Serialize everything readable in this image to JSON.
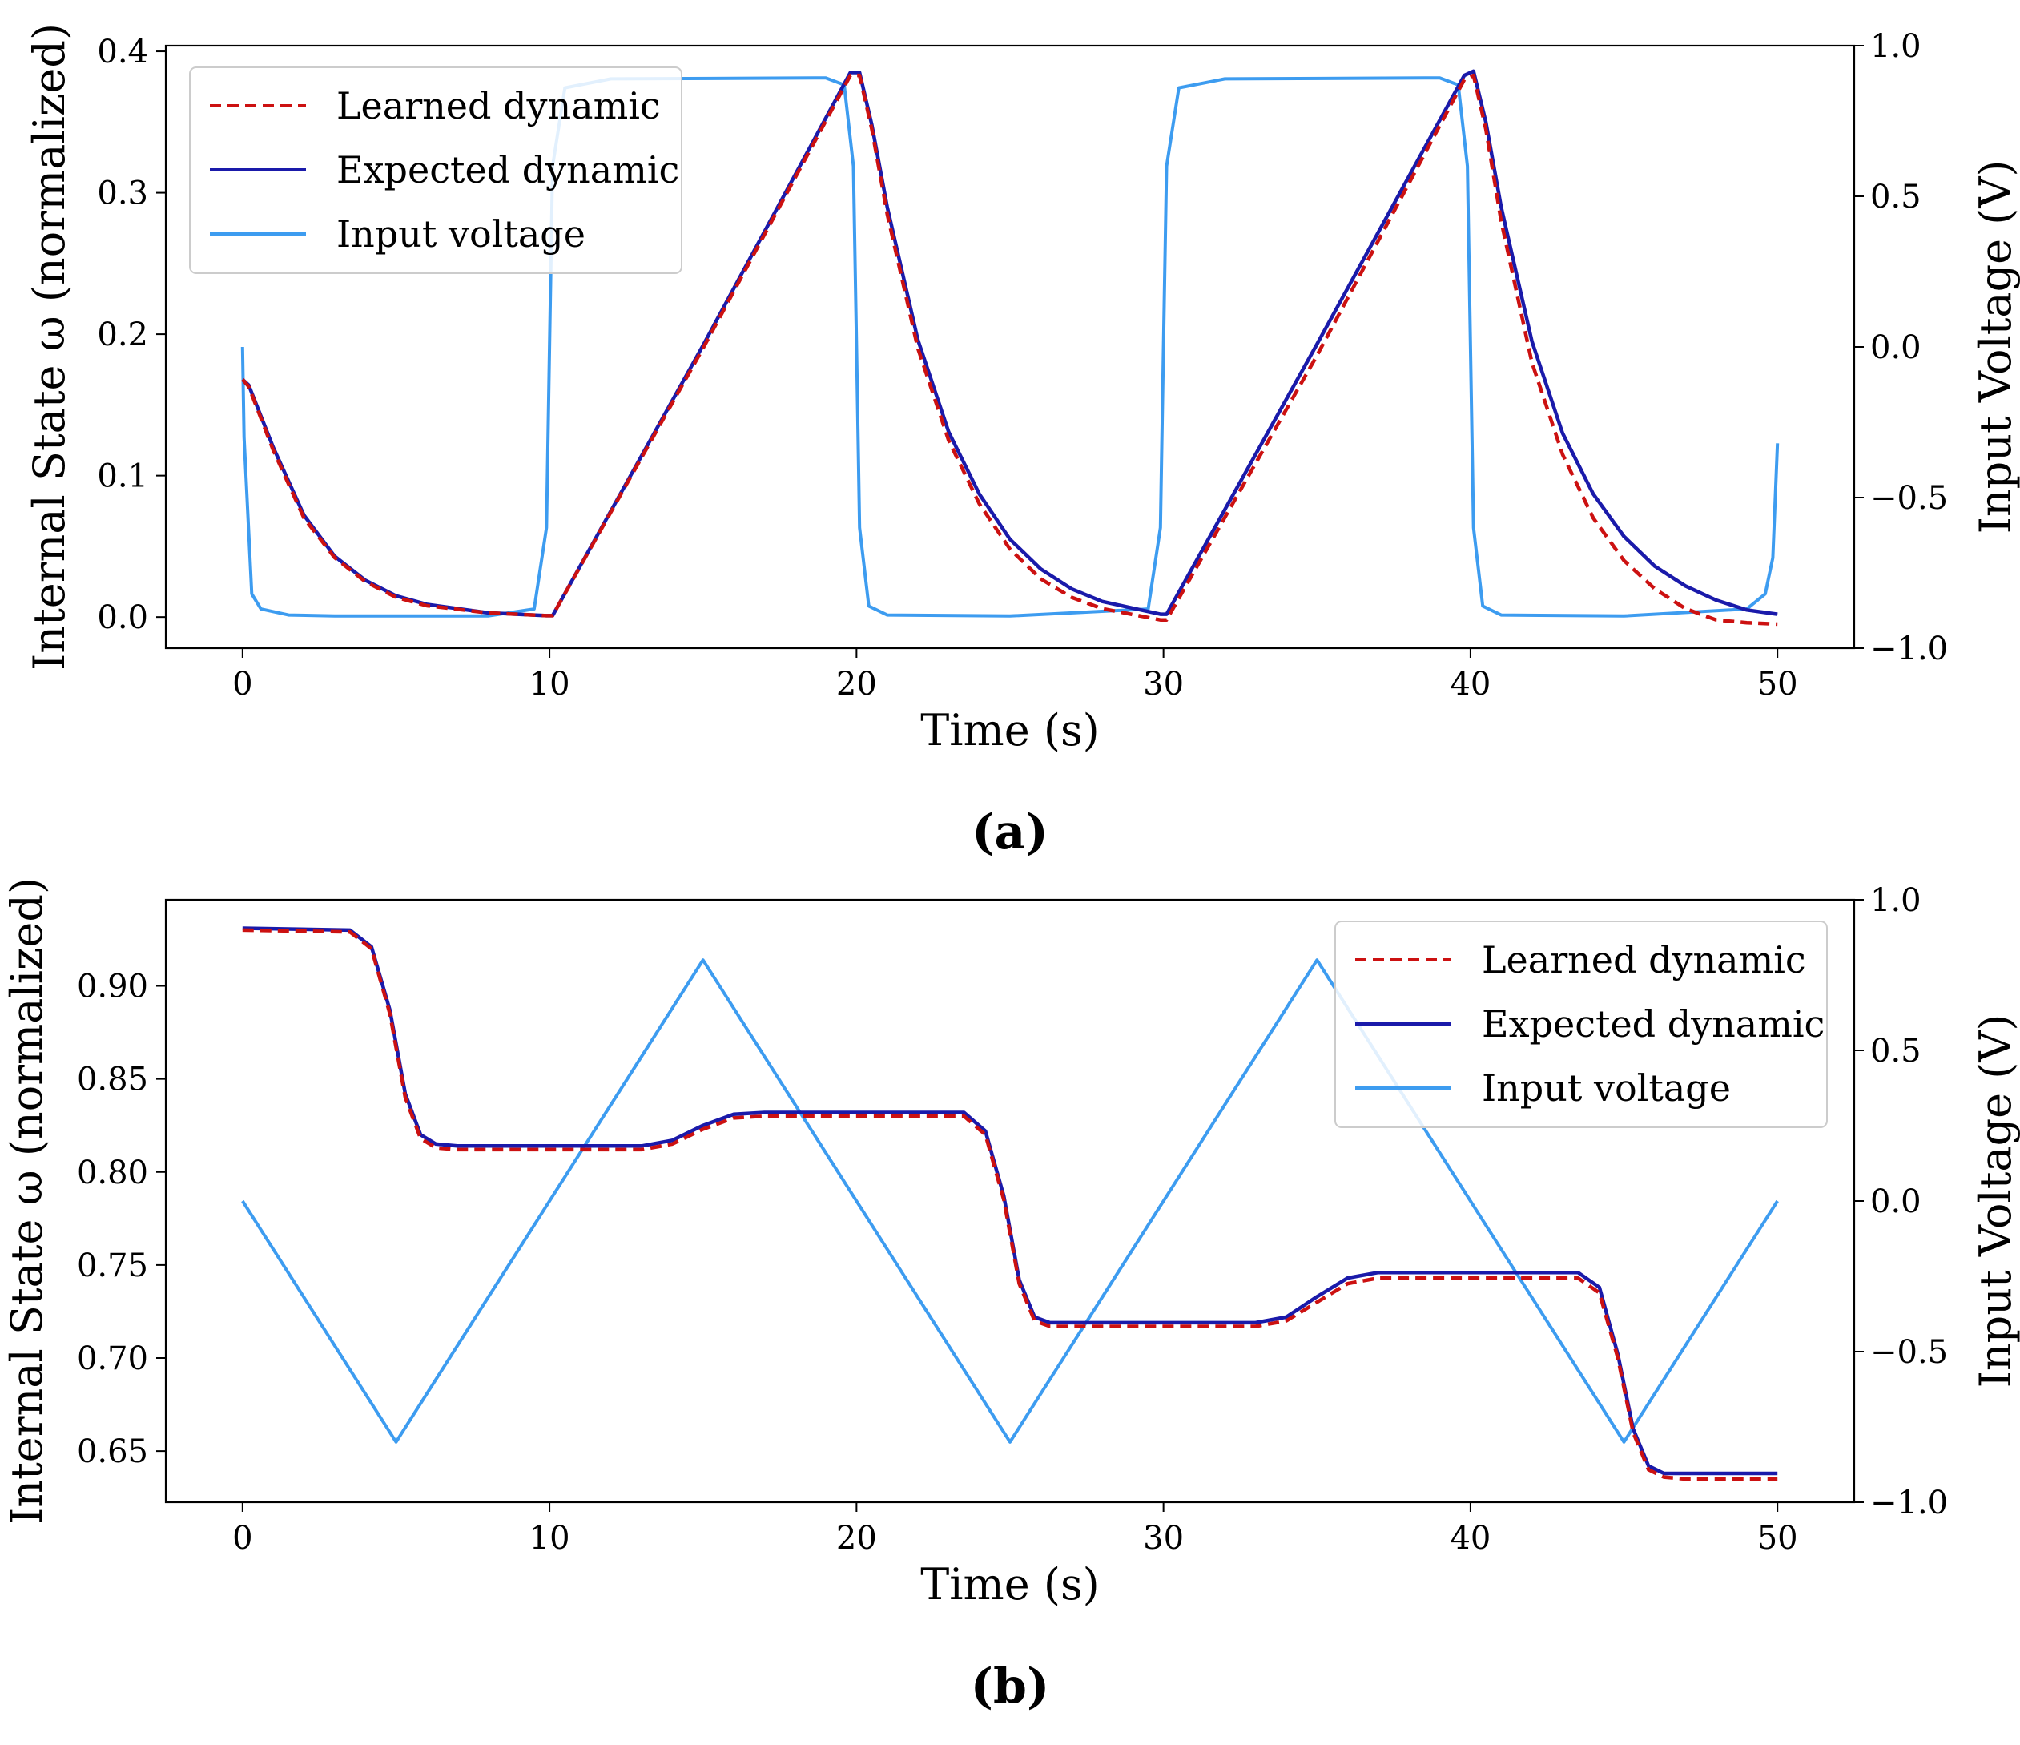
{
  "figure": {
    "captions": [
      "(a)",
      "(b)"
    ]
  },
  "chart_data": [
    {
      "id": "a",
      "type": "line",
      "caption": "(a)",
      "xlabel": "Time (s)",
      "ylabel": "Internal State ω (normalized)",
      "y2label": "Input Voltage (V)",
      "xlim": [
        -2.5,
        52.5
      ],
      "ylim": [
        -0.022,
        0.404
      ],
      "y2lim": [
        -1.0,
        1.0
      ],
      "xticks": [
        0,
        10,
        20,
        30,
        40,
        50
      ],
      "yticks": [
        0.0,
        0.1,
        0.2,
        0.3,
        0.4
      ],
      "ytick_labels": [
        "0.0",
        "0.1",
        "0.2",
        "0.3",
        "0.4"
      ],
      "y2ticks": [
        -1.0,
        -0.5,
        0.0,
        0.5,
        1.0
      ],
      "y2tick_labels": [
        "−1.0",
        "−0.5",
        "0.0",
        "0.5",
        "1.0"
      ],
      "legend_position": "top-left",
      "colors": {
        "learned": "#cc1111",
        "expected": "#1a1aaa",
        "voltage": "#3d9cf0"
      },
      "series": [
        {
          "name": "Learned dynamic",
          "axis": "left",
          "style": "dashed",
          "x": [
            0,
            0.2,
            1,
            2,
            3,
            4,
            5,
            6,
            8,
            9.9,
            10.1,
            15,
            19.8,
            20.1,
            20.5,
            21,
            22,
            23,
            24,
            25,
            26,
            27,
            28,
            29.9,
            30.1,
            35,
            39.8,
            40.1,
            40.5,
            41,
            42,
            43,
            44,
            45,
            46,
            47,
            48,
            49,
            50
          ],
          "values": [
            0.168,
            0.163,
            0.118,
            0.07,
            0.042,
            0.025,
            0.014,
            0.008,
            0.003,
            0.001,
            0.001,
            0.19,
            0.383,
            0.383,
            0.345,
            0.285,
            0.19,
            0.125,
            0.08,
            0.048,
            0.027,
            0.014,
            0.006,
            -0.002,
            -0.002,
            0.185,
            0.38,
            0.383,
            0.345,
            0.28,
            0.18,
            0.115,
            0.07,
            0.04,
            0.02,
            0.006,
            -0.002,
            -0.004,
            -0.005
          ]
        },
        {
          "name": "Expected dynamic",
          "axis": "left",
          "style": "solid",
          "x": [
            0,
            0.2,
            1,
            2,
            3,
            4,
            5,
            6,
            8,
            9.9,
            10.1,
            15,
            19.8,
            20.1,
            20.5,
            21,
            22,
            23,
            24,
            25,
            26,
            27,
            28,
            29.9,
            30.1,
            35,
            39.8,
            40.1,
            40.5,
            41,
            42,
            43,
            44,
            45,
            46,
            47,
            48,
            49,
            50
          ],
          "values": [
            0.168,
            0.164,
            0.12,
            0.072,
            0.043,
            0.026,
            0.015,
            0.009,
            0.003,
            0.001,
            0.001,
            0.192,
            0.385,
            0.385,
            0.348,
            0.29,
            0.196,
            0.131,
            0.087,
            0.055,
            0.034,
            0.02,
            0.011,
            0.002,
            0.002,
            0.193,
            0.383,
            0.386,
            0.35,
            0.29,
            0.195,
            0.13,
            0.087,
            0.057,
            0.036,
            0.022,
            0.012,
            0.005,
            0.002
          ]
        },
        {
          "name": "Input voltage",
          "axis": "right",
          "style": "solid",
          "x": [
            0,
            0.05,
            0.3,
            0.6,
            1.5,
            3,
            8,
            9.5,
            9.9,
            10,
            10.1,
            10.5,
            12,
            19,
            19.6,
            19.9,
            20,
            20.1,
            20.4,
            21,
            25,
            29.5,
            29.9,
            30,
            30.1,
            30.5,
            32,
            39,
            39.6,
            39.9,
            40,
            40.1,
            40.4,
            41,
            45,
            49,
            49.6,
            49.85,
            50
          ],
          "values": [
            0.0,
            -0.3,
            -0.82,
            -0.87,
            -0.89,
            -0.893,
            -0.893,
            -0.87,
            -0.6,
            0.0,
            0.6,
            0.86,
            0.89,
            0.893,
            0.87,
            0.6,
            0.0,
            -0.6,
            -0.86,
            -0.89,
            -0.893,
            -0.87,
            -0.6,
            0.0,
            0.6,
            0.86,
            0.89,
            0.893,
            0.87,
            0.6,
            0.0,
            -0.6,
            -0.86,
            -0.89,
            -0.893,
            -0.87,
            -0.82,
            -0.7,
            -0.32
          ]
        }
      ]
    },
    {
      "id": "b",
      "type": "line",
      "caption": "(b)",
      "xlabel": "Time (s)",
      "ylabel": "Internal State ω (normalized)",
      "y2label": "Input Voltage (V)",
      "xlim": [
        -2.5,
        52.5
      ],
      "ylim": [
        0.6225,
        0.9463
      ],
      "y2lim": [
        -1.0,
        1.0
      ],
      "xticks": [
        0,
        10,
        20,
        30,
        40,
        50
      ],
      "yticks": [
        0.65,
        0.7,
        0.75,
        0.8,
        0.85,
        0.9
      ],
      "ytick_labels": [
        "0.65",
        "0.70",
        "0.75",
        "0.80",
        "0.85",
        "0.90"
      ],
      "y2ticks": [
        -1.0,
        -0.5,
        0.0,
        0.5,
        1.0
      ],
      "y2tick_labels": [
        "−1.0",
        "−0.5",
        "0.0",
        "0.5",
        "1.0"
      ],
      "legend_position": "top-right",
      "colors": {
        "learned": "#cc1111",
        "expected": "#1a1aaa",
        "voltage": "#3d9cf0"
      },
      "series": [
        {
          "name": "Learned dynamic",
          "axis": "left",
          "style": "dashed",
          "x": [
            0,
            3.5,
            4.2,
            4.8,
            5.3,
            5.8,
            6.3,
            7,
            13,
            14,
            15,
            16,
            17,
            23.5,
            24.2,
            24.8,
            25.3,
            25.8,
            26.3,
            27,
            33,
            34,
            35,
            36,
            37,
            43.5,
            44.2,
            44.8,
            45.3,
            45.8,
            46.3,
            47,
            50
          ],
          "values": [
            0.93,
            0.929,
            0.92,
            0.885,
            0.84,
            0.818,
            0.813,
            0.812,
            0.812,
            0.815,
            0.823,
            0.829,
            0.83,
            0.83,
            0.82,
            0.785,
            0.74,
            0.72,
            0.717,
            0.717,
            0.717,
            0.72,
            0.73,
            0.74,
            0.743,
            0.743,
            0.735,
            0.7,
            0.66,
            0.64,
            0.636,
            0.635,
            0.635
          ]
        },
        {
          "name": "Expected dynamic",
          "axis": "left",
          "style": "solid",
          "x": [
            0,
            3.5,
            4.2,
            4.8,
            5.3,
            5.8,
            6.3,
            7,
            13,
            14,
            15,
            16,
            17,
            23.5,
            24.2,
            24.8,
            25.3,
            25.8,
            26.3,
            27,
            33,
            34,
            35,
            36,
            37,
            43.5,
            44.2,
            44.8,
            45.3,
            45.8,
            46.3,
            47,
            50
          ],
          "values": [
            0.931,
            0.93,
            0.921,
            0.887,
            0.842,
            0.82,
            0.815,
            0.814,
            0.814,
            0.817,
            0.825,
            0.831,
            0.832,
            0.832,
            0.822,
            0.787,
            0.742,
            0.722,
            0.719,
            0.719,
            0.719,
            0.722,
            0.733,
            0.743,
            0.746,
            0.746,
            0.738,
            0.702,
            0.662,
            0.642,
            0.638,
            0.638,
            0.638
          ]
        },
        {
          "name": "Input voltage",
          "axis": "right",
          "style": "solid",
          "x": [
            0,
            5,
            15,
            25,
            35,
            45,
            50
          ],
          "values": [
            0.0,
            -0.8,
            0.8,
            -0.8,
            0.8,
            -0.8,
            0.0
          ]
        }
      ]
    }
  ]
}
